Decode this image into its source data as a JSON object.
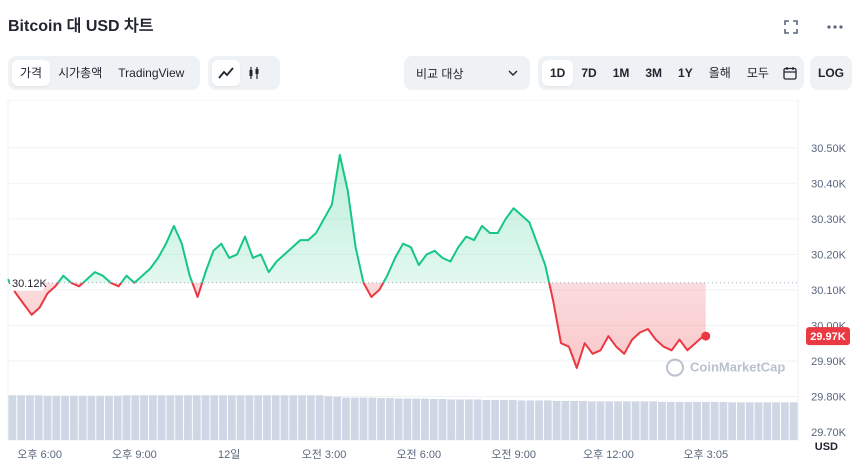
{
  "header": {
    "title": "Bitcoin 대 USD 차트"
  },
  "icons": {
    "expand": "expand-icon",
    "more": "more-icon",
    "line": "line-chart-icon",
    "candle": "candlestick-icon",
    "calendar": "calendar-icon",
    "chevron": "chevron-down-icon"
  },
  "toolbar": {
    "type_tabs": [
      "가격",
      "시가총액",
      "TradingView"
    ],
    "compare_label": "비교 대상",
    "ranges": [
      "1D",
      "7D",
      "1M",
      "3M",
      "1Y",
      "올해",
      "모두"
    ],
    "log_label": "LOG"
  },
  "colors": {
    "up": "#16c784",
    "down": "#ea3943",
    "volume": "#cfd6e4",
    "grid": "#eff2f5",
    "text": "#222531",
    "muted": "#58667e"
  },
  "chart_data": {
    "type": "line",
    "baseline": 30120,
    "baseline_label": "30.12K",
    "current_label": "29.97K",
    "watermark": "CoinMarketCap",
    "ylim": [
      29700,
      30550
    ],
    "y_ticks": [
      {
        "v": 30500,
        "label": "30.50K"
      },
      {
        "v": 30400,
        "label": "30.40K"
      },
      {
        "v": 30300,
        "label": "30.30K"
      },
      {
        "v": 30200,
        "label": "30.20K"
      },
      {
        "v": 30100,
        "label": "30.10K"
      },
      {
        "v": 30000,
        "label": "30.00K"
      },
      {
        "v": 29900,
        "label": "29.90K"
      },
      {
        "v": 29800,
        "label": "29.80K"
      },
      {
        "v": 29700,
        "label": "29.70K"
      }
    ],
    "y_unit": "USD",
    "x_range": [
      0,
      25
    ],
    "x_ticks": [
      {
        "t": 1,
        "label": "오후 6:00"
      },
      {
        "t": 4,
        "label": "오후 9:00"
      },
      {
        "t": 7,
        "label": "12일"
      },
      {
        "t": 10,
        "label": "오전 3:00"
      },
      {
        "t": 13,
        "label": "오전 6:00"
      },
      {
        "t": 16,
        "label": "오전 9:00"
      },
      {
        "t": 19,
        "label": "오후 12:00"
      },
      {
        "t": 22.08,
        "label": "오후 3:05"
      }
    ],
    "x": [
      0,
      0.25,
      0.5,
      0.75,
      1,
      1.25,
      1.5,
      1.75,
      2,
      2.25,
      2.5,
      2.75,
      3,
      3.25,
      3.5,
      3.75,
      4,
      4.25,
      4.5,
      4.75,
      5,
      5.25,
      5.5,
      5.75,
      6,
      6.25,
      6.5,
      6.75,
      7,
      7.25,
      7.5,
      7.75,
      8,
      8.25,
      8.5,
      8.75,
      9,
      9.25,
      9.5,
      9.75,
      10,
      10.25,
      10.5,
      10.75,
      11,
      11.25,
      11.5,
      11.75,
      12,
      12.25,
      12.5,
      12.75,
      13,
      13.25,
      13.5,
      13.75,
      14,
      14.25,
      14.5,
      14.75,
      15,
      15.25,
      15.5,
      15.75,
      16,
      16.25,
      16.5,
      16.75,
      17,
      17.25,
      17.5,
      17.75,
      18,
      18.25,
      18.5,
      18.75,
      19,
      19.25,
      19.5,
      19.75,
      20,
      20.25,
      20.5,
      20.75,
      21,
      21.25,
      21.5,
      21.75,
      22,
      22.08
    ],
    "y": [
      30130,
      30090,
      30060,
      30030,
      30050,
      30090,
      30110,
      30140,
      30120,
      30110,
      30130,
      30150,
      30140,
      30120,
      30110,
      30140,
      30120,
      30140,
      30160,
      30190,
      30230,
      30280,
      30230,
      30140,
      30080,
      30150,
      30210,
      30230,
      30190,
      30200,
      30250,
      30190,
      30200,
      30150,
      30180,
      30200,
      30220,
      30240,
      30240,
      30260,
      30300,
      30340,
      30480,
      30380,
      30220,
      30120,
      30080,
      30100,
      30140,
      30190,
      30230,
      30220,
      30170,
      30200,
      30210,
      30190,
      30180,
      30220,
      30250,
      30240,
      30280,
      30260,
      30260,
      30300,
      30330,
      30310,
      30290,
      30230,
      30170,
      30070,
      29950,
      29940,
      29880,
      29950,
      29920,
      29930,
      29970,
      29940,
      29920,
      29960,
      29980,
      29990,
      29960,
      29940,
      29930,
      29960,
      29930,
      29950,
      29970,
      29970
    ],
    "volume": [
      0.95,
      0.95,
      0.95,
      0.95,
      0.94,
      0.94,
      0.94,
      0.94,
      0.94,
      0.94,
      0.94,
      0.94,
      0.94,
      0.95,
      0.95,
      0.95,
      0.95,
      0.95,
      0.95,
      0.95,
      0.95,
      0.95,
      0.95,
      0.95,
      0.95,
      0.95,
      0.95,
      0.95,
      0.95,
      0.95,
      0.95,
      0.95,
      0.95,
      0.95,
      0.95,
      0.95,
      0.93,
      0.92,
      0.9,
      0.9,
      0.9,
      0.9,
      0.89,
      0.89,
      0.88,
      0.88,
      0.88,
      0.88,
      0.87,
      0.87,
      0.86,
      0.86,
      0.86,
      0.86,
      0.85,
      0.85,
      0.85,
      0.85,
      0.84,
      0.84,
      0.84,
      0.84,
      0.83,
      0.83,
      0.83,
      0.83,
      0.82,
      0.82,
      0.82,
      0.82,
      0.82,
      0.82,
      0.82,
      0.82,
      0.81,
      0.81,
      0.81,
      0.81,
      0.81,
      0.81,
      0.81,
      0.81,
      0.8,
      0.8,
      0.8,
      0.8,
      0.8,
      0.8,
      0.8,
      0.8
    ]
  }
}
